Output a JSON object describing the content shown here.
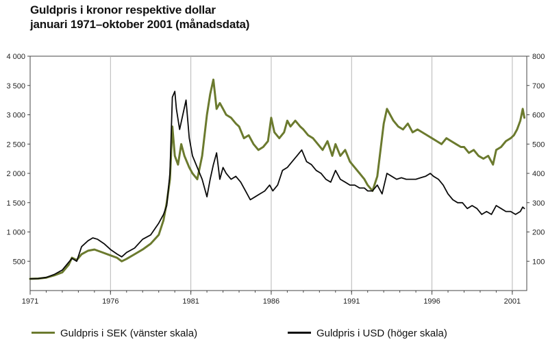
{
  "title_line1": "Guldpris i kronor respektive dollar",
  "title_line2": "januari 1971–oktober 2001 (månadsdata)",
  "chart_data": {
    "type": "line",
    "x_range": [
      1971,
      2001.9
    ],
    "left_axis": {
      "ylim": [
        0,
        4000
      ],
      "ticks": [
        "500",
        "1 000",
        "1 500",
        "2 000",
        "2 500",
        "3 000",
        "3 500",
        "4 000"
      ],
      "values": [
        500,
        1000,
        1500,
        2000,
        2500,
        3000,
        3500,
        4000
      ]
    },
    "right_axis": {
      "ylim": [
        0,
        800
      ],
      "ticks": [
        "100",
        "200",
        "300",
        "400",
        "500",
        "600",
        "700",
        "800"
      ],
      "values": [
        100,
        200,
        300,
        400,
        500,
        600,
        700,
        800
      ]
    },
    "x_ticks": [
      "1971",
      "1976",
      "1981",
      "1986",
      "1991",
      "1996",
      "2001"
    ],
    "x_tick_values": [
      1971,
      1976,
      1981,
      1986,
      1991,
      1996,
      2001
    ],
    "grid_x": true,
    "grid_y": false,
    "legend_position": "bottom",
    "series": [
      {
        "name": "Guldpris i SEK (vänster skala)",
        "axis": "left",
        "color": "#6b7a2e",
        "x": [
          1971.0,
          1971.5,
          1972.0,
          1972.5,
          1973.0,
          1973.4,
          1973.6,
          1973.9,
          1974.2,
          1974.6,
          1975.0,
          1975.5,
          1976.0,
          1976.4,
          1976.7,
          1977.0,
          1977.5,
          1978.0,
          1978.5,
          1979.0,
          1979.3,
          1979.5,
          1979.7,
          1979.85,
          1980.0,
          1980.2,
          1980.4,
          1980.6,
          1980.9,
          1981.1,
          1981.4,
          1981.7,
          1982.0,
          1982.2,
          1982.4,
          1982.6,
          1982.8,
          1983.0,
          1983.2,
          1983.5,
          1983.8,
          1984.0,
          1984.3,
          1984.6,
          1984.9,
          1985.2,
          1985.5,
          1985.8,
          1986.0,
          1986.2,
          1986.5,
          1986.8,
          1987.0,
          1987.2,
          1987.5,
          1987.8,
          1988.0,
          1988.3,
          1988.6,
          1988.9,
          1989.2,
          1989.5,
          1989.8,
          1990.0,
          1990.3,
          1990.6,
          1990.9,
          1991.2,
          1991.5,
          1991.8,
          1992.0,
          1992.3,
          1992.6,
          1992.8,
          1993.0,
          1993.2,
          1993.4,
          1993.6,
          1993.9,
          1994.2,
          1994.5,
          1994.8,
          1995.1,
          1995.4,
          1995.7,
          1996.0,
          1996.3,
          1996.6,
          1996.9,
          1997.2,
          1997.5,
          1997.8,
          1998.0,
          1998.3,
          1998.6,
          1998.9,
          1999.2,
          1999.5,
          1999.8,
          2000.0,
          2000.3,
          2000.6,
          2000.9,
          2001.1,
          2001.3,
          2001.5,
          2001.65,
          2001.75
        ],
        "values": [
          200,
          205,
          220,
          260,
          310,
          440,
          560,
          520,
          620,
          680,
          700,
          650,
          600,
          560,
          500,
          540,
          620,
          700,
          800,
          950,
          1200,
          1500,
          1900,
          2800,
          2300,
          2150,
          2500,
          2300,
          2100,
          2000,
          1900,
          2300,
          3000,
          3350,
          3600,
          3100,
          3200,
          3100,
          3000,
          2950,
          2850,
          2800,
          2600,
          2650,
          2500,
          2400,
          2450,
          2550,
          2950,
          2700,
          2600,
          2700,
          2900,
          2800,
          2900,
          2800,
          2750,
          2650,
          2600,
          2500,
          2400,
          2550,
          2300,
          2500,
          2300,
          2400,
          2200,
          2100,
          2000,
          1900,
          1800,
          1700,
          1950,
          2400,
          2850,
          3100,
          3000,
          2900,
          2800,
          2750,
          2850,
          2700,
          2750,
          2700,
          2650,
          2600,
          2550,
          2500,
          2600,
          2550,
          2500,
          2450,
          2450,
          2350,
          2400,
          2300,
          2250,
          2300,
          2150,
          2400,
          2450,
          2550,
          2600,
          2650,
          2750,
          2900,
          3100,
          2950
        ]
      },
      {
        "name": "Guldpris i USD (höger skala)",
        "axis": "right",
        "color": "#0a0a0a",
        "x": [
          1971.0,
          1971.5,
          1972.0,
          1972.5,
          1973.0,
          1973.3,
          1973.6,
          1973.9,
          1974.2,
          1974.6,
          1974.9,
          1975.2,
          1975.6,
          1976.0,
          1976.4,
          1976.7,
          1977.0,
          1977.5,
          1978.0,
          1978.5,
          1979.0,
          1979.3,
          1979.5,
          1979.7,
          1979.85,
          1980.0,
          1980.1,
          1980.3,
          1980.5,
          1980.7,
          1980.9,
          1981.1,
          1981.4,
          1981.7,
          1982.0,
          1982.2,
          1982.4,
          1982.6,
          1982.8,
          1983.0,
          1983.2,
          1983.5,
          1983.8,
          1984.1,
          1984.4,
          1984.7,
          1985.0,
          1985.3,
          1985.6,
          1985.9,
          1986.1,
          1986.4,
          1986.7,
          1987.0,
          1987.3,
          1987.6,
          1987.9,
          1988.2,
          1988.5,
          1988.8,
          1989.1,
          1989.4,
          1989.7,
          1990.0,
          1990.3,
          1990.6,
          1990.9,
          1991.2,
          1991.5,
          1991.8,
          1992.0,
          1992.3,
          1992.6,
          1992.9,
          1993.2,
          1993.5,
          1993.8,
          1994.1,
          1994.4,
          1994.7,
          1995.0,
          1995.3,
          1995.6,
          1995.9,
          1996.1,
          1996.4,
          1996.7,
          1997.0,
          1997.3,
          1997.6,
          1997.9,
          1998.2,
          1998.5,
          1998.8,
          1999.1,
          1999.4,
          1999.7,
          2000.0,
          2000.3,
          2000.6,
          2000.9,
          2001.2,
          2001.5,
          2001.65,
          2001.75
        ],
        "values": [
          40,
          41,
          45,
          55,
          70,
          90,
          110,
          100,
          150,
          170,
          180,
          175,
          160,
          140,
          125,
          115,
          130,
          145,
          175,
          190,
          230,
          260,
          290,
          400,
          660,
          680,
          620,
          550,
          600,
          650,
          520,
          460,
          420,
          380,
          320,
          380,
          430,
          470,
          380,
          420,
          400,
          380,
          390,
          370,
          340,
          310,
          320,
          330,
          340,
          360,
          340,
          360,
          410,
          420,
          440,
          460,
          480,
          440,
          430,
          410,
          400,
          380,
          370,
          410,
          380,
          370,
          360,
          360,
          350,
          350,
          340,
          340,
          360,
          330,
          400,
          390,
          380,
          385,
          380,
          380,
          380,
          385,
          390,
          400,
          390,
          380,
          360,
          330,
          310,
          300,
          300,
          280,
          290,
          280,
          260,
          270,
          260,
          290,
          280,
          270,
          270,
          260,
          270,
          285,
          280
        ]
      }
    ]
  },
  "legend": {
    "sek_label": "Guldpris i SEK (vänster skala)",
    "usd_label": "Guldpris i USD (höger skala)"
  }
}
